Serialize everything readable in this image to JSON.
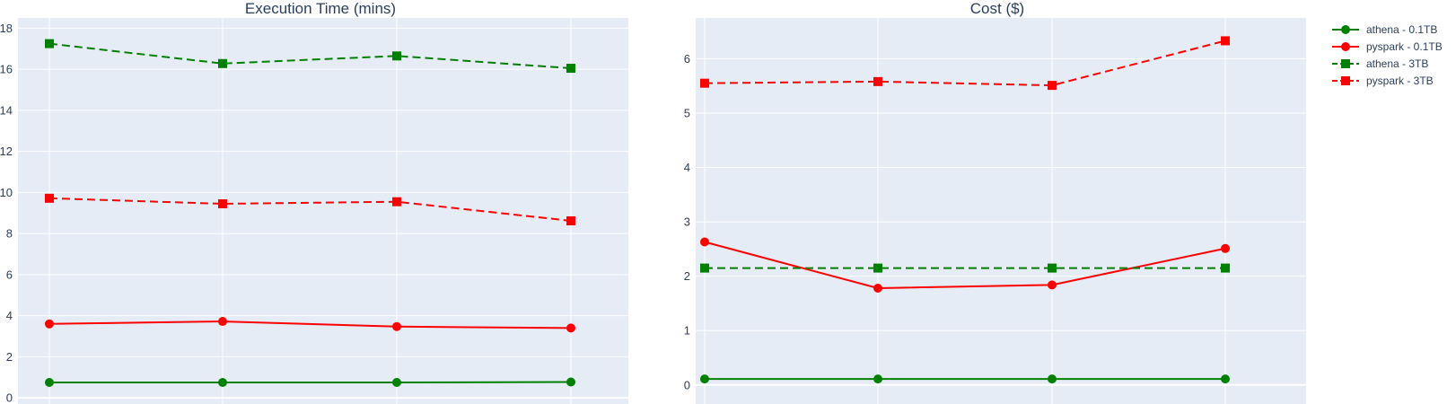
{
  "chart_data": [
    {
      "type": "line",
      "title": "Execution Time (mins)",
      "xlabel": "",
      "ylabel": "",
      "x": [
        1,
        2,
        3,
        4
      ],
      "ylim": [
        -0.3,
        18.5
      ],
      "yticks": [
        0,
        2,
        4,
        6,
        8,
        10,
        12,
        14,
        16,
        18
      ],
      "grid": true,
      "series": [
        {
          "name": "athena - 0.1TB",
          "values": [
            0.75,
            0.75,
            0.75,
            0.77
          ],
          "color": "#008000",
          "marker": "circle",
          "dash": "solid"
        },
        {
          "name": "pyspark - 0.1TB",
          "values": [
            3.6,
            3.72,
            3.47,
            3.4
          ],
          "color": "#ff0000",
          "marker": "circle",
          "dash": "solid"
        },
        {
          "name": "athena - 3TB",
          "values": [
            17.25,
            16.28,
            16.65,
            16.05
          ],
          "color": "#008000",
          "marker": "square",
          "dash": "dash"
        },
        {
          "name": "pyspark - 3TB",
          "values": [
            9.72,
            9.45,
            9.55,
            8.62
          ],
          "color": "#ff0000",
          "marker": "square",
          "dash": "dash"
        }
      ]
    },
    {
      "type": "line",
      "title": "Cost ($)",
      "xlabel": "",
      "ylabel": "",
      "x": [
        1,
        2,
        3,
        4
      ],
      "ylim": [
        -0.35,
        6.75
      ],
      "yticks": [
        0,
        1,
        2,
        3,
        4,
        5,
        6
      ],
      "grid": true,
      "series": [
        {
          "name": "athena - 0.1TB",
          "values": [
            0.11,
            0.11,
            0.11,
            0.11
          ],
          "color": "#008000",
          "marker": "circle",
          "dash": "solid"
        },
        {
          "name": "pyspark - 0.1TB",
          "values": [
            2.63,
            1.78,
            1.84,
            2.51
          ],
          "color": "#ff0000",
          "marker": "circle",
          "dash": "solid"
        },
        {
          "name": "athena - 3TB",
          "values": [
            2.15,
            2.15,
            2.15,
            2.15
          ],
          "color": "#008000",
          "marker": "square",
          "dash": "dash"
        },
        {
          "name": "pyspark - 3TB",
          "values": [
            5.55,
            5.58,
            5.51,
            6.33
          ],
          "color": "#ff0000",
          "marker": "square",
          "dash": "dash"
        }
      ]
    }
  ],
  "legend": {
    "placement": "top-right",
    "items": [
      {
        "label": "athena - 0.1TB",
        "color": "#008000",
        "marker": "circle",
        "dash": "solid"
      },
      {
        "label": "pyspark - 0.1TB",
        "color": "#ff0000",
        "marker": "circle",
        "dash": "solid"
      },
      {
        "label": "athena - 3TB",
        "color": "#008000",
        "marker": "square",
        "dash": "dash"
      },
      {
        "label": "pyspark - 3TB",
        "color": "#ff0000",
        "marker": "square",
        "dash": "dash"
      }
    ]
  },
  "colors": {
    "plot_background": "#e5ecf6",
    "grid": "#ffffff",
    "text": "#2a3f5f"
  }
}
